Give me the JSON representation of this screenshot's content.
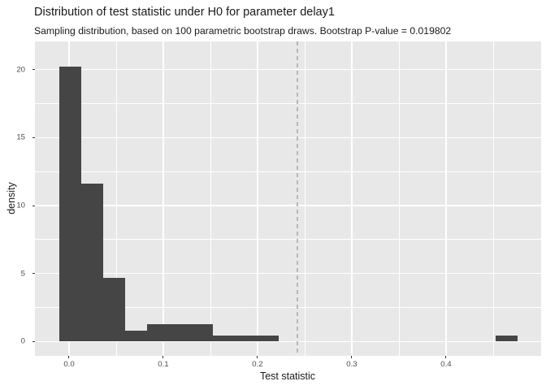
{
  "chart_data": {
    "type": "histogram",
    "title": "Distribution of test statistic under H0 for parameter delay1",
    "subtitle": "Sampling distribution, based on 100 parametric bootstrap draws. Bootstrap P-value = 0.019802",
    "xlabel": "Test statistic",
    "ylabel": "density",
    "n_bootstrap_draws": 100,
    "p_value": 0.019802,
    "grid": true,
    "legend": "none",
    "x_axis": {
      "range": [
        -0.0362,
        0.5009
      ],
      "major_ticks": [
        {
          "value": 0,
          "label": "0.0"
        },
        {
          "value": 0.1,
          "label": "0.1"
        },
        {
          "value": 0.2,
          "label": "0.2"
        },
        {
          "value": 0.3,
          "label": "0.3"
        },
        {
          "value": 0.4,
          "label": "0.4"
        }
      ],
      "minor_ticks": [
        0.05,
        0.15,
        0.25,
        0.35,
        0.45
      ]
    },
    "y_axis": {
      "range": [
        -1.045,
        22.06
      ],
      "major_ticks": [
        {
          "value": 0,
          "label": "0"
        },
        {
          "value": 5,
          "label": "5"
        },
        {
          "value": 10,
          "label": "10"
        },
        {
          "value": 15,
          "label": "15"
        },
        {
          "value": 20,
          "label": "20"
        }
      ],
      "minor_ticks": [
        2.5,
        7.5,
        12.5,
        17.5
      ]
    },
    "bins": [
      {
        "x0": -0.0104,
        "x1": 0.0129,
        "density": 20.2
      },
      {
        "x0": 0.0129,
        "x1": 0.0362,
        "density": 11.6
      },
      {
        "x0": 0.0362,
        "x1": 0.0595,
        "density": 4.7
      },
      {
        "x0": 0.0595,
        "x1": 0.0828,
        "density": 0.8
      },
      {
        "x0": 0.0828,
        "x1": 0.106,
        "density": 1.3
      },
      {
        "x0": 0.106,
        "x1": 0.1293,
        "density": 1.3
      },
      {
        "x0": 0.1293,
        "x1": 0.1526,
        "density": 1.3
      },
      {
        "x0": 0.1526,
        "x1": 0.1759,
        "density": 0.43
      },
      {
        "x0": 0.1759,
        "x1": 0.1992,
        "density": 0.43
      },
      {
        "x0": 0.1992,
        "x1": 0.2224,
        "density": 0.43
      },
      {
        "x0": 0.453,
        "x1": 0.4763,
        "density": 0.43
      }
    ],
    "vline": {
      "x": 0.2422,
      "style": "dashed"
    },
    "colors": {
      "bar": "#454545",
      "panel_background": "#e8e8e8",
      "gridline": "#ffffff",
      "vline": "#b8b8b8",
      "tick_mark": "#333333",
      "tick_label": "#4d4d4d",
      "text": "#1a1a1a"
    }
  }
}
